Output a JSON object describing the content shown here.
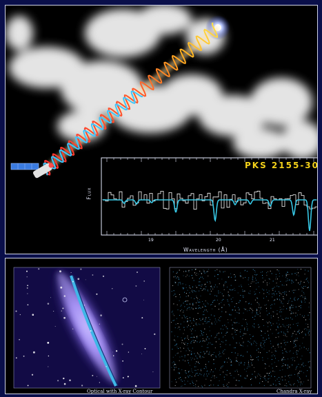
{
  "top_panel": {
    "target_label": "PKS 2155-30",
    "spectrum": {
      "y_label": "Flux",
      "x_label": "Wavelength (Å)",
      "x_ticks": [
        "19",
        "20",
        "21"
      ]
    },
    "colors": {
      "title": "#f5d21a",
      "model_line": "#37c8e6",
      "data_line": "#ffffff"
    }
  },
  "bottom_panel": {
    "left_caption": "Optical with X-ray Contour",
    "right_caption": "Chandra X-ray"
  }
}
